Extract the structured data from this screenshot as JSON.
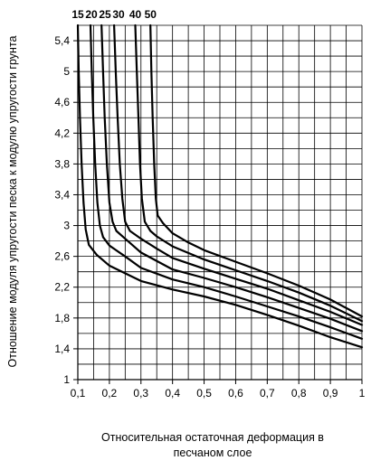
{
  "chart_data": {
    "type": "line",
    "xlabel_line1": "Относительная остаточная деформация в",
    "xlabel_line2": "песчаном слое",
    "ylabel": "Отношение модуля упругости песка к модулю упругости грунта",
    "xlim": [
      0.1,
      1.0
    ],
    "ylim": [
      1.0,
      5.6
    ],
    "x_ticks": [
      "0,1",
      "0,2",
      "0,3",
      "0,4",
      "0,5",
      "0,6",
      "0,7",
      "0,8",
      "0,9",
      "1"
    ],
    "x_tick_values": [
      0.1,
      0.2,
      0.3,
      0.4,
      0.5,
      0.6,
      0.7,
      0.8,
      0.9,
      1.0
    ],
    "y_ticks": [
      "1",
      "1,4",
      "1,8",
      "2,2",
      "2,6",
      "3",
      "3,4",
      "3,8",
      "4,2",
      "4,6",
      "5",
      "5,4"
    ],
    "y_tick_values": [
      1.0,
      1.4,
      1.8,
      2.2,
      2.6,
      3.0,
      3.4,
      3.8,
      4.2,
      4.6,
      5.0,
      5.4
    ],
    "grid": true,
    "series": [
      {
        "name": "15",
        "points": [
          [
            0.1,
            5.6
          ],
          [
            0.103,
            5.0
          ],
          [
            0.107,
            4.4
          ],
          [
            0.112,
            3.8
          ],
          [
            0.118,
            3.3
          ],
          [
            0.125,
            2.95
          ],
          [
            0.135,
            2.75
          ],
          [
            0.16,
            2.62
          ],
          [
            0.2,
            2.48
          ],
          [
            0.3,
            2.28
          ],
          [
            0.4,
            2.17
          ],
          [
            0.5,
            2.08
          ],
          [
            0.6,
            1.97
          ],
          [
            0.7,
            1.84
          ],
          [
            0.8,
            1.7
          ],
          [
            0.9,
            1.55
          ],
          [
            1.0,
            1.42
          ]
        ]
      },
      {
        "name": "20",
        "points": [
          [
            0.14,
            5.6
          ],
          [
            0.144,
            5.0
          ],
          [
            0.149,
            4.4
          ],
          [
            0.155,
            3.8
          ],
          [
            0.162,
            3.3
          ],
          [
            0.17,
            3.0
          ],
          [
            0.18,
            2.85
          ],
          [
            0.2,
            2.74
          ],
          [
            0.25,
            2.6
          ],
          [
            0.3,
            2.45
          ],
          [
            0.4,
            2.3
          ],
          [
            0.5,
            2.2
          ],
          [
            0.6,
            2.08
          ],
          [
            0.7,
            1.95
          ],
          [
            0.8,
            1.82
          ],
          [
            0.9,
            1.68
          ],
          [
            1.0,
            1.53
          ]
        ]
      },
      {
        "name": "25",
        "points": [
          [
            0.175,
            5.6
          ],
          [
            0.18,
            5.0
          ],
          [
            0.185,
            4.4
          ],
          [
            0.192,
            3.8
          ],
          [
            0.2,
            3.3
          ],
          [
            0.21,
            3.05
          ],
          [
            0.222,
            2.93
          ],
          [
            0.25,
            2.83
          ],
          [
            0.3,
            2.65
          ],
          [
            0.4,
            2.43
          ],
          [
            0.5,
            2.32
          ],
          [
            0.6,
            2.2
          ],
          [
            0.7,
            2.07
          ],
          [
            0.8,
            1.93
          ],
          [
            0.9,
            1.79
          ],
          [
            1.0,
            1.63
          ]
        ]
      },
      {
        "name": "30",
        "points": [
          [
            0.215,
            5.6
          ],
          [
            0.22,
            5.0
          ],
          [
            0.226,
            4.4
          ],
          [
            0.233,
            3.8
          ],
          [
            0.241,
            3.35
          ],
          [
            0.25,
            3.05
          ],
          [
            0.265,
            2.93
          ],
          [
            0.3,
            2.83
          ],
          [
            0.35,
            2.7
          ],
          [
            0.4,
            2.58
          ],
          [
            0.5,
            2.44
          ],
          [
            0.6,
            2.31
          ],
          [
            0.7,
            2.18
          ],
          [
            0.8,
            2.03
          ],
          [
            0.9,
            1.88
          ],
          [
            1.0,
            1.71
          ]
        ]
      },
      {
        "name": "40",
        "points": [
          [
            0.282,
            5.6
          ],
          [
            0.287,
            5.0
          ],
          [
            0.292,
            4.4
          ],
          [
            0.297,
            3.8
          ],
          [
            0.303,
            3.35
          ],
          [
            0.312,
            3.05
          ],
          [
            0.33,
            2.93
          ],
          [
            0.35,
            2.86
          ],
          [
            0.4,
            2.73
          ],
          [
            0.5,
            2.56
          ],
          [
            0.6,
            2.42
          ],
          [
            0.7,
            2.28
          ],
          [
            0.8,
            2.13
          ],
          [
            0.9,
            1.96
          ],
          [
            1.0,
            1.76
          ]
        ]
      },
      {
        "name": "50",
        "points": [
          [
            0.33,
            5.6
          ],
          [
            0.333,
            5.0
          ],
          [
            0.337,
            4.4
          ],
          [
            0.342,
            3.8
          ],
          [
            0.347,
            3.35
          ],
          [
            0.353,
            3.13
          ],
          [
            0.37,
            3.03
          ],
          [
            0.4,
            2.9
          ],
          [
            0.45,
            2.78
          ],
          [
            0.5,
            2.68
          ],
          [
            0.6,
            2.53
          ],
          [
            0.7,
            2.38
          ],
          [
            0.8,
            2.22
          ],
          [
            0.9,
            2.04
          ],
          [
            1.0,
            1.82
          ]
        ]
      }
    ]
  }
}
